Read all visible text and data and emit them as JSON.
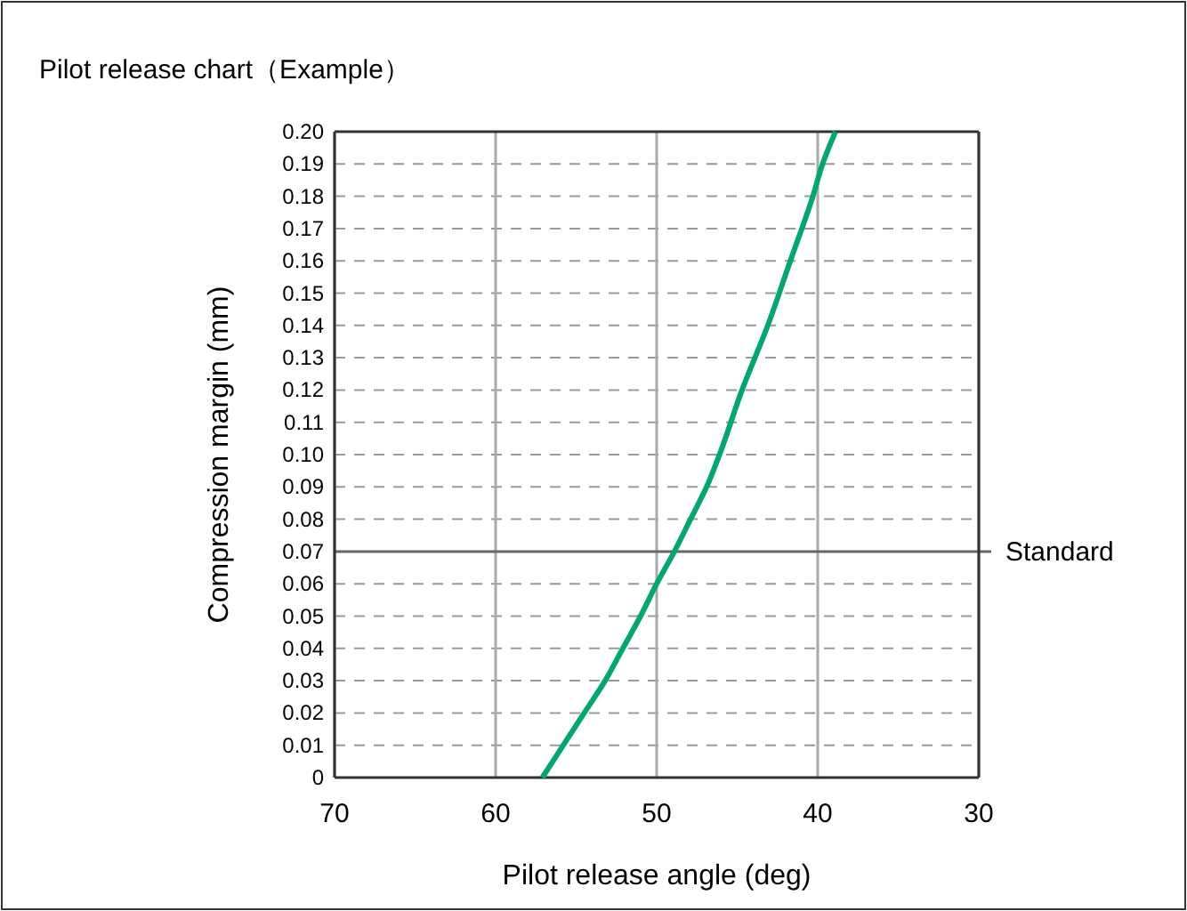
{
  "chart_data": {
    "type": "line",
    "title": "Pilot release chart（Example）",
    "xlabel": "Pilot release angle (deg)",
    "ylabel": "Compression margin (mm)",
    "xlim": [
      70,
      30
    ],
    "xticks": [
      70,
      60,
      50,
      40,
      30
    ],
    "ylim": [
      0,
      0.2
    ],
    "yticks": [
      0,
      0.01,
      0.02,
      0.03,
      0.04,
      0.05,
      0.06,
      0.07,
      0.08,
      0.09,
      {
        "value": 0.1,
        "label": "0.10"
      },
      0.11,
      0.12,
      0.13,
      0.14,
      0.15,
      0.16,
      0.17,
      0.18,
      0.19,
      {
        "value": 0.2,
        "label": "0.20"
      }
    ],
    "grid": true,
    "series": [
      {
        "color": "#00a86b",
        "x": [
          57.1,
          55.8,
          54.5,
          53.2,
          52.1,
          51.0,
          50.0,
          48.9,
          47.9,
          46.9,
          46.1,
          44.7,
          43.1,
          41.7,
          40.3,
          39.7,
          38.9
        ],
        "values": [
          0,
          0.01,
          0.02,
          0.03,
          0.04,
          0.05,
          0.06,
          0.07,
          0.08,
          0.09,
          0.1,
          0.12,
          0.14,
          0.16,
          0.18,
          0.19,
          0.2
        ]
      }
    ],
    "ref_lines": [
      {
        "axis": "y",
        "value": 0.07,
        "label": "Standard",
        "color": "#666666"
      }
    ]
  }
}
